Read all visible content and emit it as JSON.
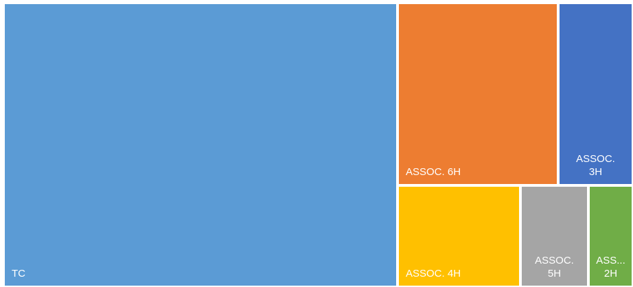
{
  "chart_data": {
    "type": "treemap",
    "title": "",
    "items": [
      {
        "name": "TC",
        "label": "TC",
        "color": "#5B9BD5"
      },
      {
        "name": "ASSOC. 6H",
        "label": "ASSOC. 6H",
        "color": "#ED7D31"
      },
      {
        "name": "ASSOC. 3H",
        "label": "ASSOC.\n3H",
        "color": "#4472C4"
      },
      {
        "name": "ASSOC. 4H",
        "label": "ASSOC. 4H",
        "color": "#FFC000"
      },
      {
        "name": "ASSOC. 5H",
        "label": "ASSOC.\n5H",
        "color": "#A5A5A5"
      },
      {
        "name": "ASS... 2H",
        "label": "ASS...\n2H",
        "color": "#70AD47"
      }
    ]
  }
}
